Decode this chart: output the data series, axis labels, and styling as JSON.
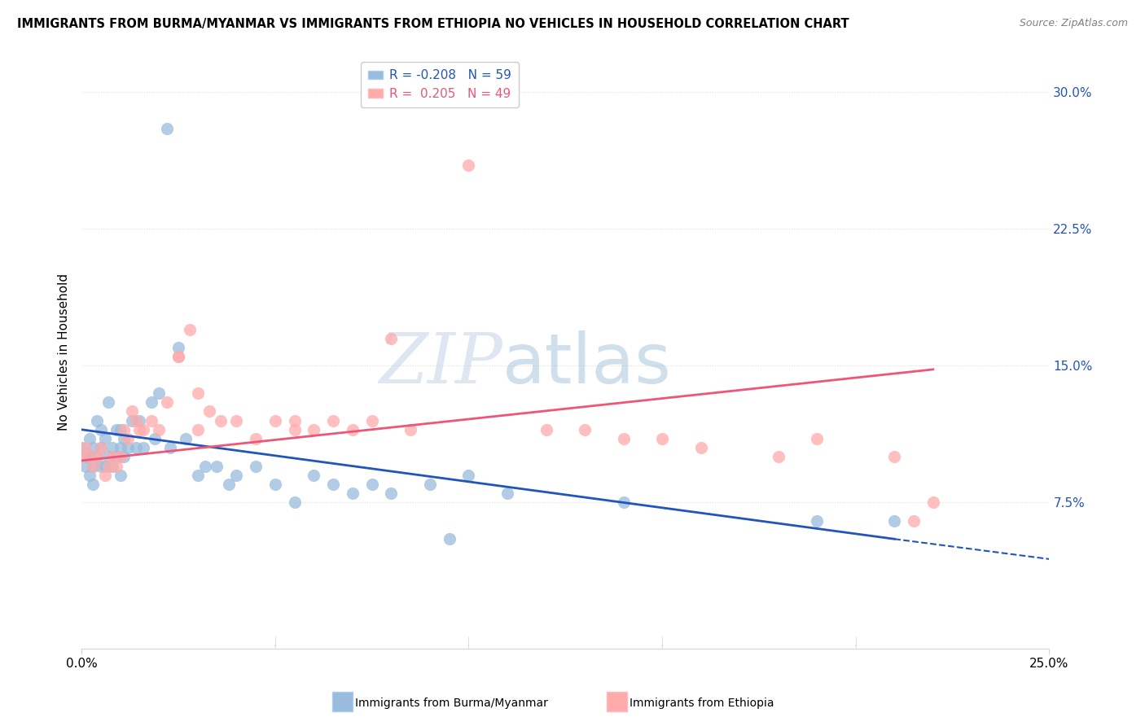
{
  "title": "IMMIGRANTS FROM BURMA/MYANMAR VS IMMIGRANTS FROM ETHIOPIA NO VEHICLES IN HOUSEHOLD CORRELATION CHART",
  "source": "Source: ZipAtlas.com",
  "ylabel": "No Vehicles in Household",
  "xlim": [
    0.0,
    0.25
  ],
  "ylim": [
    -0.005,
    0.32
  ],
  "watermark_zip": "ZIP",
  "watermark_atlas": "atlas",
  "legend_r1": "R = -0.208",
  "legend_n1": "N = 59",
  "legend_r2": "R =  0.205",
  "legend_n2": "N = 49",
  "color_blue": "#99BBDD",
  "color_pink": "#FFAAAA",
  "trendline_blue_color": "#2255BB",
  "trendline_pink_color": "#EE5577",
  "scatter_blue_x": [
    0.0,
    0.001,
    0.001,
    0.002,
    0.002,
    0.002,
    0.003,
    0.003,
    0.003,
    0.004,
    0.004,
    0.005,
    0.005,
    0.005,
    0.006,
    0.006,
    0.007,
    0.007,
    0.008,
    0.008,
    0.009,
    0.009,
    0.01,
    0.01,
    0.01,
    0.011,
    0.011,
    0.012,
    0.013,
    0.014,
    0.015,
    0.016,
    0.018,
    0.019,
    0.02,
    0.022,
    0.023,
    0.025,
    0.027,
    0.03,
    0.032,
    0.035,
    0.038,
    0.04,
    0.045,
    0.05,
    0.055,
    0.06,
    0.065,
    0.07,
    0.075,
    0.08,
    0.09,
    0.095,
    0.1,
    0.11,
    0.14,
    0.19,
    0.21
  ],
  "scatter_blue_y": [
    0.105,
    0.1,
    0.095,
    0.11,
    0.1,
    0.09,
    0.105,
    0.095,
    0.085,
    0.12,
    0.1,
    0.115,
    0.105,
    0.095,
    0.11,
    0.095,
    0.13,
    0.1,
    0.105,
    0.095,
    0.115,
    0.1,
    0.115,
    0.105,
    0.09,
    0.11,
    0.1,
    0.105,
    0.12,
    0.105,
    0.12,
    0.105,
    0.13,
    0.11,
    0.135,
    0.28,
    0.105,
    0.16,
    0.11,
    0.09,
    0.095,
    0.095,
    0.085,
    0.09,
    0.095,
    0.085,
    0.075,
    0.09,
    0.085,
    0.08,
    0.085,
    0.08,
    0.085,
    0.055,
    0.09,
    0.08,
    0.075,
    0.065,
    0.065
  ],
  "scatter_pink_x": [
    0.0,
    0.001,
    0.002,
    0.003,
    0.004,
    0.005,
    0.006,
    0.007,
    0.008,
    0.009,
    0.01,
    0.011,
    0.012,
    0.013,
    0.014,
    0.015,
    0.016,
    0.018,
    0.02,
    0.022,
    0.025,
    0.028,
    0.03,
    0.033,
    0.036,
    0.04,
    0.045,
    0.05,
    0.055,
    0.065,
    0.075,
    0.08,
    0.1,
    0.12,
    0.13,
    0.14,
    0.15,
    0.16,
    0.18,
    0.19,
    0.21,
    0.215,
    0.22,
    0.085,
    0.07,
    0.06,
    0.055,
    0.03,
    0.025
  ],
  "scatter_pink_y": [
    0.1,
    0.105,
    0.1,
    0.095,
    0.1,
    0.105,
    0.09,
    0.095,
    0.1,
    0.095,
    0.1,
    0.115,
    0.11,
    0.125,
    0.12,
    0.115,
    0.115,
    0.12,
    0.115,
    0.13,
    0.155,
    0.17,
    0.135,
    0.125,
    0.12,
    0.12,
    0.11,
    0.12,
    0.12,
    0.12,
    0.12,
    0.165,
    0.26,
    0.115,
    0.115,
    0.11,
    0.11,
    0.105,
    0.1,
    0.11,
    0.1,
    0.065,
    0.075,
    0.115,
    0.115,
    0.115,
    0.115,
    0.115,
    0.155
  ],
  "trendline_blue_x0": 0.0,
  "trendline_blue_x1": 0.21,
  "trendline_blue_y0": 0.115,
  "trendline_blue_y1": 0.055,
  "trendline_blue_dash_x0": 0.21,
  "trendline_blue_dash_x1": 0.25,
  "trendline_blue_dash_y0": 0.055,
  "trendline_blue_dash_y1": 0.044,
  "trendline_pink_x0": 0.0,
  "trendline_pink_x1": 0.22,
  "trendline_pink_y0": 0.098,
  "trendline_pink_y1": 0.148,
  "ytick_vals": [
    0.075,
    0.15,
    0.225,
    0.3
  ],
  "ytick_labels": [
    "7.5%",
    "15.0%",
    "22.5%",
    "30.0%"
  ],
  "legend_label1": "Immigrants from Burma/Myanmar",
  "legend_label2": "Immigrants from Ethiopia"
}
